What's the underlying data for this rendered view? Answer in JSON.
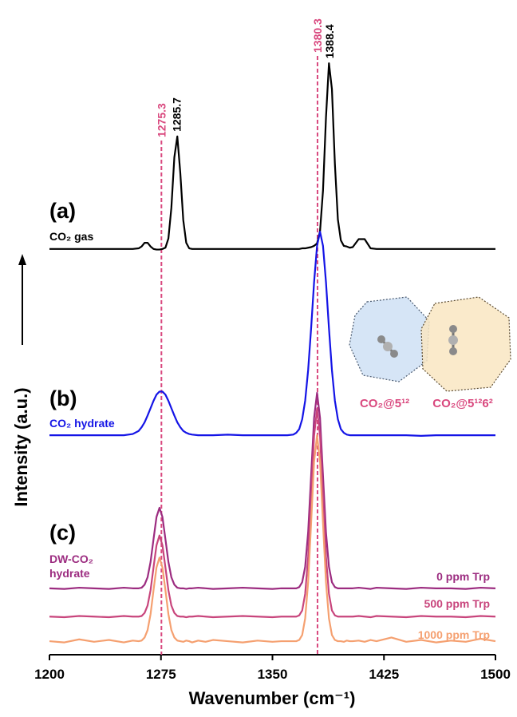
{
  "chart_data": {
    "type": "line",
    "xlabel": "Wavenumber (cm⁻¹)",
    "ylabel": "Intensity (a.u.)",
    "xlim": [
      1200,
      1500
    ],
    "xticks": [
      1200,
      1275,
      1350,
      1425,
      1500
    ],
    "ylim": [
      0,
      100
    ],
    "panel_labels": [
      "(a)",
      "(b)",
      "(c)"
    ],
    "annotation": "DW-CO₂ hydrate",
    "reference_lines": [
      1275.3,
      1380.3
    ],
    "reference_color": "#d9487e",
    "peak_labels": [
      1285.7,
      1388.4
    ],
    "inset_labels": [
      "CO₂@5¹²",
      "CO₂@5¹²6²"
    ],
    "x": [
      1200,
      1210,
      1220,
      1230,
      1240,
      1250,
      1256,
      1260,
      1262,
      1264,
      1266,
      1268,
      1270,
      1272,
      1274,
      1276,
      1278,
      1280,
      1282,
      1284,
      1286,
      1288,
      1290,
      1292,
      1294,
      1296,
      1300,
      1305,
      1310,
      1320,
      1330,
      1340,
      1350,
      1356,
      1360,
      1364,
      1366,
      1368,
      1370,
      1372,
      1374,
      1376,
      1378,
      1380,
      1382,
      1384,
      1386,
      1388,
      1390,
      1392,
      1394,
      1396,
      1398,
      1400,
      1402,
      1404,
      1408,
      1412,
      1416,
      1420,
      1430,
      1440,
      1450,
      1460,
      1470,
      1480,
      1490,
      1500
    ],
    "series": [
      {
        "name": "CO₂ gas",
        "color": "#000000",
        "values": [
          66.0,
          66.0,
          66.0,
          66.0,
          66.0,
          66.0,
          66.0,
          66.1,
          66.4,
          67.0,
          67.0,
          66.4,
          66.0,
          65.9,
          65.9,
          66.0,
          66.2,
          67.7,
          72.7,
          80.9,
          84.3,
          78.4,
          70.7,
          67.0,
          66.1,
          66.0,
          66.0,
          66.0,
          66.0,
          66.0,
          66.0,
          66.0,
          66.0,
          66.0,
          66.0,
          66.0,
          66.0,
          66.0,
          66.1,
          66.1,
          66.2,
          66.3,
          66.5,
          66.9,
          68.9,
          75.5,
          87.4,
          96.2,
          92.0,
          79.8,
          70.8,
          67.4,
          66.5,
          66.4,
          66.2,
          66.3,
          67.6,
          67.6,
          66.1,
          66.0,
          66.0,
          66.0,
          66.0,
          66.0,
          66.0,
          66.0,
          66.0,
          66.0
        ]
      },
      {
        "name": "CO₂ hydrate",
        "color": "#1414e6",
        "values": [
          35.7,
          35.7,
          35.7,
          35.7,
          35.7,
          35.7,
          35.9,
          36.4,
          37.0,
          37.8,
          38.9,
          40.1,
          41.3,
          42.3,
          42.8,
          42.8,
          42.3,
          41.3,
          40.1,
          38.9,
          37.8,
          37.0,
          36.4,
          36.1,
          35.9,
          35.8,
          35.7,
          35.7,
          35.7,
          35.8,
          35.7,
          35.7,
          35.7,
          35.7,
          35.7,
          35.8,
          36.1,
          36.7,
          38.3,
          41.3,
          46.3,
          53.1,
          60.6,
          66.5,
          68.8,
          66.5,
          60.6,
          53.1,
          46.3,
          41.3,
          38.3,
          36.7,
          36.1,
          35.8,
          35.7,
          35.7,
          35.7,
          35.7,
          35.7,
          35.7,
          35.7,
          35.7,
          35.6,
          35.7,
          35.7,
          35.7,
          35.7,
          35.7
        ]
      },
      {
        "name": "0 ppm Trp",
        "color": "#9c2c80",
        "values": [
          10.8,
          10.7,
          10.9,
          10.8,
          10.7,
          10.9,
          10.8,
          10.8,
          10.9,
          11.4,
          12.6,
          15.1,
          18.8,
          22.4,
          23.9,
          22.4,
          18.8,
          15.1,
          12.6,
          11.4,
          10.9,
          10.8,
          10.8,
          10.7,
          10.8,
          10.8,
          10.9,
          10.8,
          10.7,
          10.8,
          10.9,
          10.8,
          10.7,
          10.8,
          10.8,
          10.8,
          10.8,
          11.0,
          11.8,
          14.3,
          19.9,
          29.1,
          38.5,
          42.6,
          38.5,
          29.1,
          19.9,
          14.3,
          11.8,
          11.0,
          10.8,
          10.8,
          10.8,
          10.8,
          10.8,
          10.8,
          10.9,
          10.8,
          10.7,
          10.9,
          10.8,
          10.7,
          10.9,
          10.8,
          10.8,
          10.7,
          10.9,
          10.8
        ]
      },
      {
        "name": "500 ppm Trp",
        "color": "#c8457c",
        "values": [
          6.2,
          6.1,
          6.3,
          6.2,
          6.1,
          6.3,
          6.2,
          6.2,
          6.3,
          6.8,
          8.0,
          10.5,
          14.2,
          17.8,
          19.4,
          17.8,
          14.2,
          10.5,
          8.0,
          6.8,
          6.3,
          6.2,
          6.2,
          6.1,
          6.2,
          6.2,
          6.3,
          6.2,
          6.1,
          6.2,
          6.3,
          6.2,
          6.1,
          6.2,
          6.2,
          6.2,
          6.2,
          6.4,
          7.2,
          9.9,
          15.9,
          25.6,
          35.6,
          40.0,
          35.6,
          25.6,
          15.9,
          9.9,
          7.2,
          6.4,
          6.2,
          6.2,
          6.2,
          6.2,
          6.2,
          6.2,
          6.3,
          6.2,
          6.1,
          6.3,
          6.2,
          6.1,
          6.3,
          6.2,
          6.2,
          6.1,
          6.3,
          6.2
        ]
      },
      {
        "name": "1000 ppm Trp",
        "color": "#f5a070",
        "values": [
          2.2,
          2.0,
          2.5,
          2.1,
          2.4,
          2.0,
          2.3,
          2.2,
          2.3,
          2.8,
          4.0,
          6.6,
          10.5,
          14.2,
          15.8,
          14.2,
          10.5,
          6.6,
          4.0,
          2.8,
          2.3,
          2.2,
          2.1,
          2.3,
          2.2,
          2.0,
          2.3,
          2.1,
          2.4,
          2.2,
          2.0,
          2.3,
          2.1,
          2.2,
          2.2,
          2.2,
          2.2,
          2.4,
          3.2,
          5.9,
          11.8,
          21.4,
          31.4,
          35.7,
          31.4,
          21.4,
          11.8,
          5.9,
          3.2,
          2.4,
          2.2,
          2.2,
          2.1,
          2.3,
          2.2,
          2.2,
          2.3,
          2.1,
          2.4,
          2.2,
          2.8,
          2.1,
          2.4,
          2.0,
          2.3,
          2.1,
          2.6,
          2.2
        ]
      }
    ]
  }
}
